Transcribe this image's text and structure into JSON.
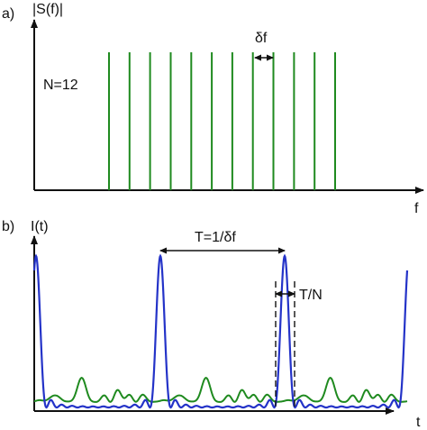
{
  "colors": {
    "axis": "#111111",
    "spectrum": "#1f8a1f",
    "pulse_blue": "#2433c8",
    "pulse_green": "#1f8a1f",
    "annotation": "#111111"
  },
  "panel_a": {
    "tag": "a)",
    "ylabel": "|S(f)|",
    "xlabel": "f",
    "n_label": "N=12",
    "spacing_label": "δf",
    "line_count": 12
  },
  "panel_b": {
    "tag": "b)",
    "ylabel": "I(t)",
    "xlabel": "t",
    "period_label": "T=1/δf",
    "width_label": "T/N"
  },
  "chart_data": [
    {
      "type": "line",
      "panel": "a",
      "xlabel": "f",
      "ylabel": "|S(f)|",
      "series": [
        {
          "values": [
            1,
            1,
            1,
            1,
            1,
            1,
            1,
            1,
            1,
            1,
            1,
            1
          ]
        }
      ],
      "annotations": [
        "N=12",
        "δf"
      ]
    },
    {
      "type": "line",
      "panel": "b",
      "xlabel": "t",
      "ylabel": "I(t)",
      "annotations": [
        "T=1/δf",
        "T/N"
      ],
      "series": [
        {
          "color": "#2433c8",
          "period_in_pulses": 1,
          "pulses_visible": 4
        },
        {
          "color": "#1f8a1f"
        }
      ]
    }
  ]
}
